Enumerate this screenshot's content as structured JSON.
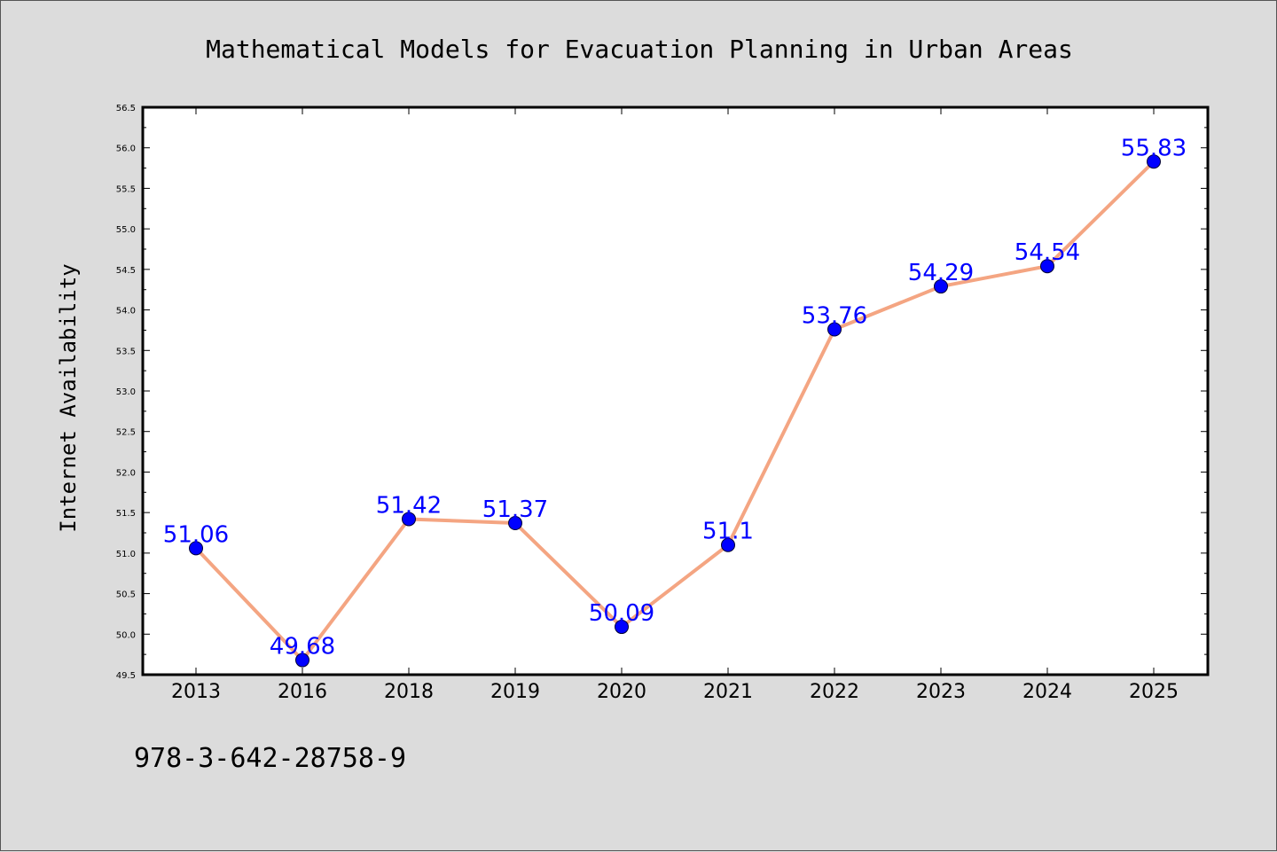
{
  "chart_data": {
    "type": "line",
    "title": "Mathematical Models for Evacuation Planning in Urban Areas",
    "xlabel": "",
    "ylabel": "Internet Availability",
    "categories": [
      "2013",
      "2016",
      "2018",
      "2019",
      "2020",
      "2021",
      "2022",
      "2023",
      "2024",
      "2025"
    ],
    "values": [
      51.06,
      49.68,
      51.42,
      51.37,
      50.09,
      51.1,
      53.76,
      54.29,
      54.54,
      55.83
    ],
    "data_labels": [
      "51.06",
      "49.68",
      "51.42",
      "51.37",
      "50.09",
      "51.1",
      "53.76",
      "54.29",
      "54.54",
      "55.83"
    ],
    "ylim": [
      49.5,
      56.5
    ],
    "yticks": [
      "49.5",
      "50.0",
      "50.5",
      "51.0",
      "51.5",
      "52.0",
      "52.5",
      "53.0",
      "53.5",
      "54.0",
      "54.5",
      "55.0",
      "55.5",
      "56.0",
      "56.5"
    ],
    "grid": false,
    "legend": "none",
    "line_color": "#f4a582",
    "marker_color": "#0000ff",
    "label_color": "#0000ff"
  },
  "footer_code": "978-3-642-28758-9"
}
